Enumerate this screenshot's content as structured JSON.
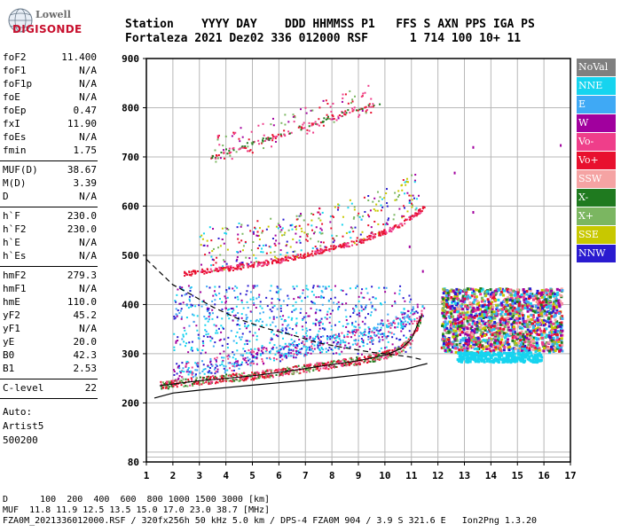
{
  "logo": {
    "line1": "Lowell",
    "line2": "DIGISONDE"
  },
  "header": {
    "labels": "Station    YYYY DAY    DDD HHMMSS P1   FFS S AXN PPS IGA PS",
    "values": "Fortaleza 2021 Dez02 336 012000 RSF      1 714 100 10+ 11"
  },
  "params_group1": [
    {
      "name": "foF2",
      "value": "11.400"
    },
    {
      "name": "foF1",
      "value": "N/A"
    },
    {
      "name": "foF1p",
      "value": "N/A"
    },
    {
      "name": "foE",
      "value": "N/A"
    },
    {
      "name": "foEp",
      "value": "0.47"
    },
    {
      "name": "fxI",
      "value": "11.90"
    },
    {
      "name": "foEs",
      "value": "N/A"
    },
    {
      "name": "fmin",
      "value": "1.75"
    }
  ],
  "params_group2": [
    {
      "name": "MUF(D)",
      "value": "38.67"
    },
    {
      "name": "M(D)",
      "value": "3.39"
    },
    {
      "name": "D",
      "value": "N/A"
    }
  ],
  "params_group3": [
    {
      "name": "h`F",
      "value": "230.0"
    },
    {
      "name": "h`F2",
      "value": "230.0"
    },
    {
      "name": "h`E",
      "value": "N/A"
    },
    {
      "name": "h`Es",
      "value": "N/A"
    }
  ],
  "params_group4": [
    {
      "name": "hmF2",
      "value": "279.3"
    },
    {
      "name": "hmF1",
      "value": "N/A"
    },
    {
      "name": "hmE",
      "value": "110.0"
    },
    {
      "name": "yF2",
      "value": "45.2"
    },
    {
      "name": "yF1",
      "value": "N/A"
    },
    {
      "name": "yE",
      "value": "20.0"
    },
    {
      "name": "B0",
      "value": "42.3"
    },
    {
      "name": "B1",
      "value": "2.53"
    }
  ],
  "params_group5": [
    {
      "name": "C-level",
      "value": "22"
    }
  ],
  "auto": {
    "line1": "Auto:",
    "line2": "Artist5",
    "line3": "500200"
  },
  "legend": [
    {
      "label": "NoVal",
      "color": "#7f7f7f"
    },
    {
      "label": "NNE",
      "color": "#16d4ef"
    },
    {
      "label": "E",
      "color": "#3fa9f5"
    },
    {
      "label": "W",
      "color": "#a1009e"
    },
    {
      "label": "Vo-",
      "color": "#ef3e8a"
    },
    {
      "label": "Vo+",
      "color": "#e8102e"
    },
    {
      "label": "SSW",
      "color": "#f5a3a3"
    },
    {
      "label": "X-",
      "color": "#1f7a1f"
    },
    {
      "label": "X+",
      "color": "#7bb661"
    },
    {
      "label": "SSE",
      "color": "#c8c800"
    },
    {
      "label": "NNW",
      "color": "#2a1bd0"
    }
  ],
  "footer": {
    "line1": "D      100  200  400  600  800 1000 1500 3000 [km]",
    "line2": "MUF  11.8 11.9 12.5 13.5 15.0 17.0 23.0 38.7 [MHz]",
    "line3": "FZA0M_2021336012000.RSF / 320fx256h 50 kHz 5.0 km / DPS-4 FZA0M 904 / 3.9 S 321.6 E   Ion2Png 1.3.20"
  },
  "chart_data": {
    "type": "scatter",
    "xlim": [
      1,
      17
    ],
    "ylim": [
      80,
      900
    ],
    "x_ticks": [
      "1",
      "2",
      "3",
      "4",
      "5",
      "6",
      "7",
      "8",
      "9",
      "10",
      "11",
      "12",
      "13",
      "14",
      "15",
      "16",
      "17"
    ],
    "y_ticks": [
      "80",
      "200",
      "300",
      "400",
      "500",
      "600",
      "700",
      "800",
      "900"
    ],
    "grid": true,
    "profile_solid": [
      [
        1.3,
        210
      ],
      [
        2,
        220
      ],
      [
        3,
        226
      ],
      [
        4,
        231
      ],
      [
        5,
        236
      ],
      [
        6,
        241
      ],
      [
        7,
        246
      ],
      [
        8,
        251
      ],
      [
        9,
        257
      ],
      [
        10,
        263
      ],
      [
        10.8,
        269
      ],
      [
        11.3,
        276
      ],
      [
        11.6,
        280
      ]
    ],
    "profile_dashed": [
      [
        1,
        492
      ],
      [
        2,
        440
      ],
      [
        2.7,
        420
      ],
      [
        3.5,
        395
      ],
      [
        4.5,
        370
      ],
      [
        5.5,
        352
      ],
      [
        6.5,
        338
      ],
      [
        7.5,
        322
      ],
      [
        8.5,
        312
      ],
      [
        9.5,
        303
      ],
      [
        10.3,
        298
      ],
      [
        11,
        293
      ],
      [
        11.4,
        288
      ]
    ],
    "ordinary_trace": [
      [
        1.5,
        235
      ],
      [
        3,
        245
      ],
      [
        4,
        250
      ],
      [
        5,
        255
      ],
      [
        6,
        262
      ],
      [
        7,
        270
      ],
      [
        8,
        278
      ],
      [
        9,
        286
      ],
      [
        10,
        297
      ],
      [
        10.6,
        310
      ],
      [
        11,
        330
      ],
      [
        11.2,
        355
      ],
      [
        11.4,
        380
      ]
    ],
    "extraordinary_trace": [
      [
        2,
        262
      ],
      [
        3,
        268
      ],
      [
        4,
        277
      ],
      [
        5,
        290
      ],
      [
        6,
        300
      ],
      [
        7,
        312
      ],
      [
        8,
        322
      ],
      [
        9,
        332
      ],
      [
        10,
        345
      ],
      [
        10.5,
        360
      ],
      [
        11,
        375
      ],
      [
        11.5,
        390
      ]
    ],
    "second_hop_trace": [
      [
        2.4,
        462
      ],
      [
        3,
        467
      ],
      [
        4,
        473
      ],
      [
        5,
        481
      ],
      [
        6,
        490
      ],
      [
        7,
        501
      ],
      [
        8,
        516
      ],
      [
        9,
        528
      ],
      [
        10,
        549
      ],
      [
        10.5,
        560
      ],
      [
        11,
        578
      ],
      [
        11.5,
        600
      ]
    ],
    "third_hop_trace": [
      [
        3.3,
        696
      ],
      [
        4,
        712
      ],
      [
        5,
        728
      ],
      [
        6,
        746
      ],
      [
        7,
        764
      ],
      [
        8,
        782
      ],
      [
        9,
        800
      ],
      [
        9.8,
        812
      ]
    ]
  }
}
